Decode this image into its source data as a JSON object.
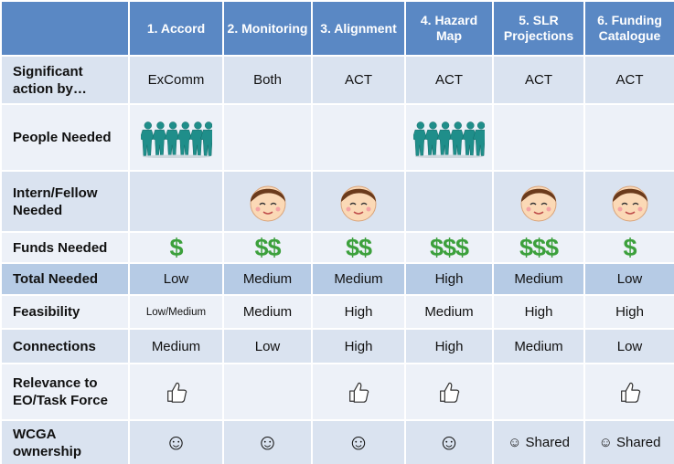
{
  "table": {
    "header": [
      "1. Accord",
      "2. Monitoring",
      "3. Alignment",
      "4. Hazard Map",
      "5. SLR Projections",
      "6. Funding Catalogue"
    ],
    "rows": [
      {
        "label": "Significant action by…",
        "cells": [
          "ExComm",
          "Both",
          "ACT",
          "ACT",
          "ACT",
          "ACT"
        ]
      },
      {
        "label": "People Needed"
      },
      {
        "label": "Intern/Fellow Needed"
      },
      {
        "label": "Funds Needed",
        "cells": [
          "$",
          "$$",
          "$$",
          "$$$",
          "$$$",
          "$"
        ]
      },
      {
        "label": "Total Needed",
        "cells": [
          "Low",
          "Medium",
          "Medium",
          "High",
          "Medium",
          "Low"
        ]
      },
      {
        "label": "Feasibility",
        "cells": [
          "Low/Medium",
          "Medium",
          "High",
          "Medium",
          "High",
          "High"
        ]
      },
      {
        "label": "Connections",
        "cells": [
          "Medium",
          "Low",
          "High",
          "High",
          "Medium",
          "Low"
        ]
      },
      {
        "label": "Relevance to EO/Task Force"
      },
      {
        "label": "WCGA ownership",
        "cells": [
          "☺",
          "☺",
          "☺",
          "☺",
          "☺ Shared",
          "☺ Shared"
        ]
      }
    ]
  }
}
